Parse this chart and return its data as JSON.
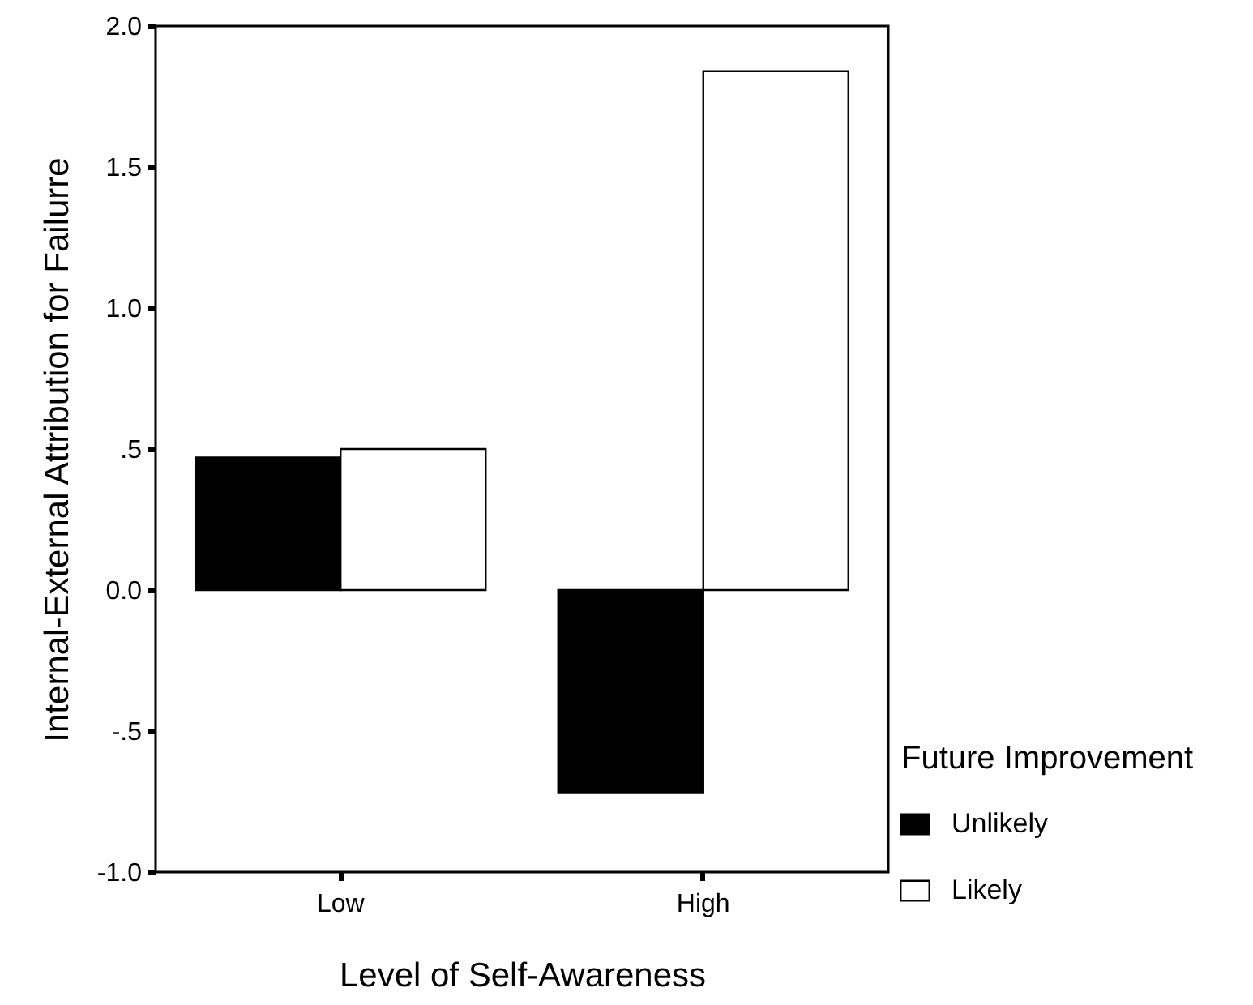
{
  "chart_data": {
    "type": "bar",
    "categories": [
      "Low",
      "High"
    ],
    "xlabel": "Level of Self-Awareness",
    "ylabel": "Internal-External Attribution for Failurre",
    "legend_title": "Future Improvement",
    "series": [
      {
        "name": "Unlikely",
        "color": "#000000",
        "values": [
          0.47,
          -0.72
        ]
      },
      {
        "name": "Likely",
        "color": "#ffffff",
        "values": [
          0.5,
          1.84
        ]
      }
    ],
    "ylim": [
      -1.0,
      2.0
    ],
    "yticks": [
      {
        "value": -1.0,
        "label": "-1.0"
      },
      {
        "value": -0.5,
        "label": "-.5"
      },
      {
        "value": 0,
        "label": "0.0"
      },
      {
        "value": 0.5,
        "label": ".5"
      },
      {
        "value": 1.0,
        "label": "1.0"
      },
      {
        "value": 1.5,
        "label": "1.5"
      },
      {
        "value": 2.0,
        "label": "2.0"
      }
    ],
    "grid": false,
    "legend": "right"
  }
}
